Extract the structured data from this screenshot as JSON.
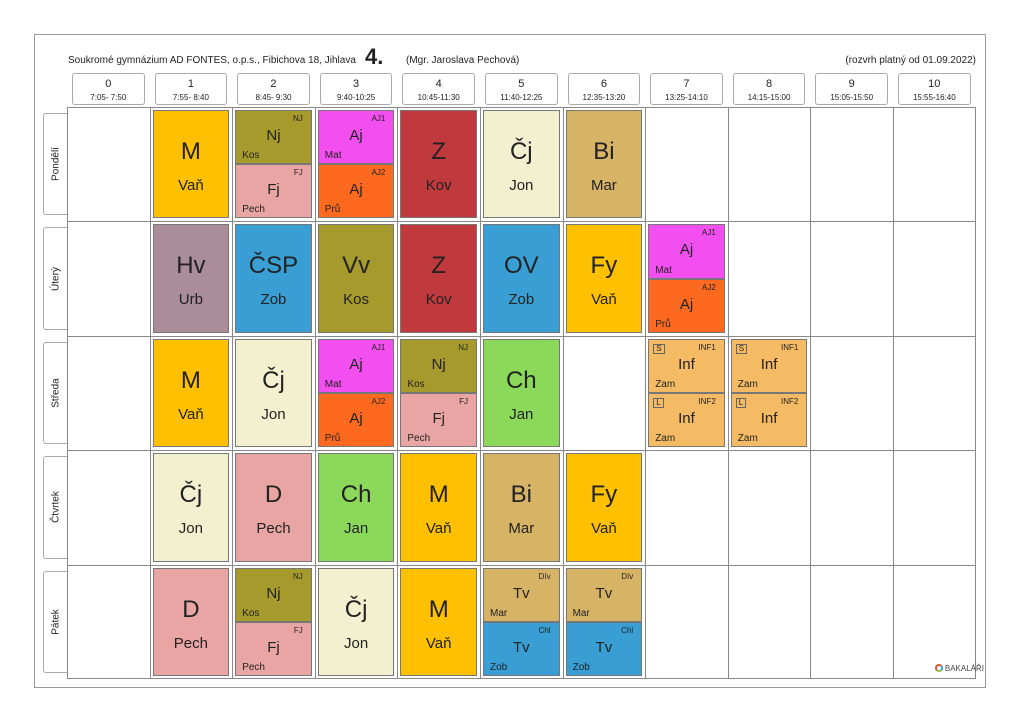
{
  "header": {
    "school": "Soukromé gymnázium AD FONTES, o.p.s., Fibichova 18, Jihlava",
    "class_name": "4.",
    "teacher": "(Mgr. Jaroslava Pechová)",
    "valid_from": "(rozvrh platný od 01.09.2022)"
  },
  "periods": [
    {
      "num": "0",
      "time": "7:05- 7:50"
    },
    {
      "num": "1",
      "time": "7:55- 8:40"
    },
    {
      "num": "2",
      "time": "8:45- 9:30"
    },
    {
      "num": "3",
      "time": "9:40-10:25"
    },
    {
      "num": "4",
      "time": "10:45-11:30"
    },
    {
      "num": "5",
      "time": "11:40-12:25"
    },
    {
      "num": "6",
      "time": "12:35-13:20"
    },
    {
      "num": "7",
      "time": "13:25-14:10"
    },
    {
      "num": "8",
      "time": "14:15-15:00"
    },
    {
      "num": "9",
      "time": "15:05-15:50"
    },
    {
      "num": "10",
      "time": "15:55-16:40"
    }
  ],
  "days": [
    "Pondělí",
    "Úterý",
    "Středa",
    "Čtvrtek",
    "Pátek"
  ],
  "colors": {
    "M": "#fec000",
    "Nj": "#a69a2c",
    "Fj": "#e9a5a4",
    "Aj1": "#f34ff0",
    "Aj2": "#fd6a1f",
    "Z": "#c0393c",
    "Cj": "#f3f0d0",
    "Bi": "#d7b366",
    "Hv": "#ab8c99",
    "CSP": "#389ed4",
    "Vv": "#a69a2c",
    "OV": "#389ed4",
    "Fy": "#fec000",
    "Ch": "#8cd85a",
    "Inf": "#f5bb64",
    "D": "#e9a5a4",
    "TvDiv": "#d7b366",
    "TvChl": "#389ed4"
  },
  "lessons": [
    {
      "day": 0,
      "period": 1,
      "parts": [
        {
          "subject": "M",
          "teacher": "Vaň",
          "color": "M"
        }
      ]
    },
    {
      "day": 0,
      "period": 2,
      "parts": [
        {
          "subject": "Nj",
          "teacher": "Kos",
          "group": "NJ",
          "color": "Nj"
        },
        {
          "subject": "Fj",
          "teacher": "Pech",
          "group": "FJ",
          "color": "Fj"
        }
      ]
    },
    {
      "day": 0,
      "period": 3,
      "parts": [
        {
          "subject": "Aj",
          "teacher": "Mat",
          "group": "AJ1",
          "color": "Aj1"
        },
        {
          "subject": "Aj",
          "teacher": "Prů",
          "group": "AJ2",
          "color": "Aj2"
        }
      ]
    },
    {
      "day": 0,
      "period": 4,
      "parts": [
        {
          "subject": "Z",
          "teacher": "Kov",
          "color": "Z"
        }
      ]
    },
    {
      "day": 0,
      "period": 5,
      "parts": [
        {
          "subject": "Čj",
          "teacher": "Jon",
          "color": "Cj"
        }
      ]
    },
    {
      "day": 0,
      "period": 6,
      "parts": [
        {
          "subject": "Bi",
          "teacher": "Mar",
          "color": "Bi"
        }
      ]
    },
    {
      "day": 1,
      "period": 1,
      "parts": [
        {
          "subject": "Hv",
          "teacher": "Urb",
          "color": "Hv"
        }
      ]
    },
    {
      "day": 1,
      "period": 2,
      "parts": [
        {
          "subject": "ČSP",
          "teacher": "Zob",
          "color": "CSP"
        }
      ]
    },
    {
      "day": 1,
      "period": 3,
      "parts": [
        {
          "subject": "Vv",
          "teacher": "Kos",
          "color": "Vv"
        }
      ]
    },
    {
      "day": 1,
      "period": 4,
      "parts": [
        {
          "subject": "Z",
          "teacher": "Kov",
          "color": "Z"
        }
      ]
    },
    {
      "day": 1,
      "period": 5,
      "parts": [
        {
          "subject": "OV",
          "teacher": "Zob",
          "color": "OV"
        }
      ]
    },
    {
      "day": 1,
      "period": 6,
      "parts": [
        {
          "subject": "Fy",
          "teacher": "Vaň",
          "color": "Fy"
        }
      ]
    },
    {
      "day": 1,
      "period": 7,
      "parts": [
        {
          "subject": "Aj",
          "teacher": "Mat",
          "group": "AJ1",
          "color": "Aj1"
        },
        {
          "subject": "Aj",
          "teacher": "Prů",
          "group": "AJ2",
          "color": "Aj2"
        }
      ]
    },
    {
      "day": 2,
      "period": 1,
      "parts": [
        {
          "subject": "M",
          "teacher": "Vaň",
          "color": "M"
        }
      ]
    },
    {
      "day": 2,
      "period": 2,
      "parts": [
        {
          "subject": "Čj",
          "teacher": "Jon",
          "color": "Cj"
        }
      ]
    },
    {
      "day": 2,
      "period": 3,
      "parts": [
        {
          "subject": "Aj",
          "teacher": "Mat",
          "group": "AJ1",
          "color": "Aj1"
        },
        {
          "subject": "Aj",
          "teacher": "Prů",
          "group": "AJ2",
          "color": "Aj2"
        }
      ]
    },
    {
      "day": 2,
      "period": 4,
      "parts": [
        {
          "subject": "Nj",
          "teacher": "Kos",
          "group": "NJ",
          "color": "Nj"
        },
        {
          "subject": "Fj",
          "teacher": "Pech",
          "group": "FJ",
          "color": "Fj"
        }
      ]
    },
    {
      "day": 2,
      "period": 5,
      "parts": [
        {
          "subject": "Ch",
          "teacher": "Jan",
          "color": "Ch"
        }
      ]
    },
    {
      "day": 2,
      "period": 7,
      "parts": [
        {
          "subject": "Inf",
          "teacher": "Zam",
          "group": "INF1",
          "tag": "S",
          "color": "Inf"
        },
        {
          "subject": "Inf",
          "teacher": "Zam",
          "group": "INF2",
          "tag": "L",
          "color": "Inf"
        }
      ]
    },
    {
      "day": 2,
      "period": 8,
      "parts": [
        {
          "subject": "Inf",
          "teacher": "Zam",
          "group": "INF1",
          "tag": "S",
          "color": "Inf"
        },
        {
          "subject": "Inf",
          "teacher": "Zam",
          "group": "INF2",
          "tag": "L",
          "color": "Inf"
        }
      ]
    },
    {
      "day": 3,
      "period": 1,
      "parts": [
        {
          "subject": "Čj",
          "teacher": "Jon",
          "color": "Cj"
        }
      ]
    },
    {
      "day": 3,
      "period": 2,
      "parts": [
        {
          "subject": "D",
          "teacher": "Pech",
          "color": "D"
        }
      ]
    },
    {
      "day": 3,
      "period": 3,
      "parts": [
        {
          "subject": "Ch",
          "teacher": "Jan",
          "color": "Ch"
        }
      ]
    },
    {
      "day": 3,
      "period": 4,
      "parts": [
        {
          "subject": "M",
          "teacher": "Vaň",
          "color": "M"
        }
      ]
    },
    {
      "day": 3,
      "period": 5,
      "parts": [
        {
          "subject": "Bi",
          "teacher": "Mar",
          "color": "Bi"
        }
      ]
    },
    {
      "day": 3,
      "period": 6,
      "parts": [
        {
          "subject": "Fy",
          "teacher": "Vaň",
          "color": "Fy"
        }
      ]
    },
    {
      "day": 4,
      "period": 1,
      "parts": [
        {
          "subject": "D",
          "teacher": "Pech",
          "color": "D"
        }
      ]
    },
    {
      "day": 4,
      "period": 2,
      "parts": [
        {
          "subject": "Nj",
          "teacher": "Kos",
          "group": "NJ",
          "color": "Nj"
        },
        {
          "subject": "Fj",
          "teacher": "Pech",
          "group": "FJ",
          "color": "Fj"
        }
      ]
    },
    {
      "day": 4,
      "period": 3,
      "parts": [
        {
          "subject": "Čj",
          "teacher": "Jon",
          "color": "Cj"
        }
      ]
    },
    {
      "day": 4,
      "period": 4,
      "parts": [
        {
          "subject": "M",
          "teacher": "Vaň",
          "color": "M"
        }
      ]
    },
    {
      "day": 4,
      "period": 5,
      "parts": [
        {
          "subject": "Tv",
          "teacher": "Mar",
          "group": "Dív",
          "color": "TvDiv"
        },
        {
          "subject": "Tv",
          "teacher": "Zob",
          "group": "Chl",
          "color": "TvChl"
        }
      ]
    },
    {
      "day": 4,
      "period": 6,
      "parts": [
        {
          "subject": "Tv",
          "teacher": "Mar",
          "group": "Dív",
          "color": "TvDiv"
        },
        {
          "subject": "Tv",
          "teacher": "Zob",
          "group": "Chl",
          "color": "TvChl"
        }
      ]
    }
  ],
  "logo_text": "BAKALÁŘI"
}
